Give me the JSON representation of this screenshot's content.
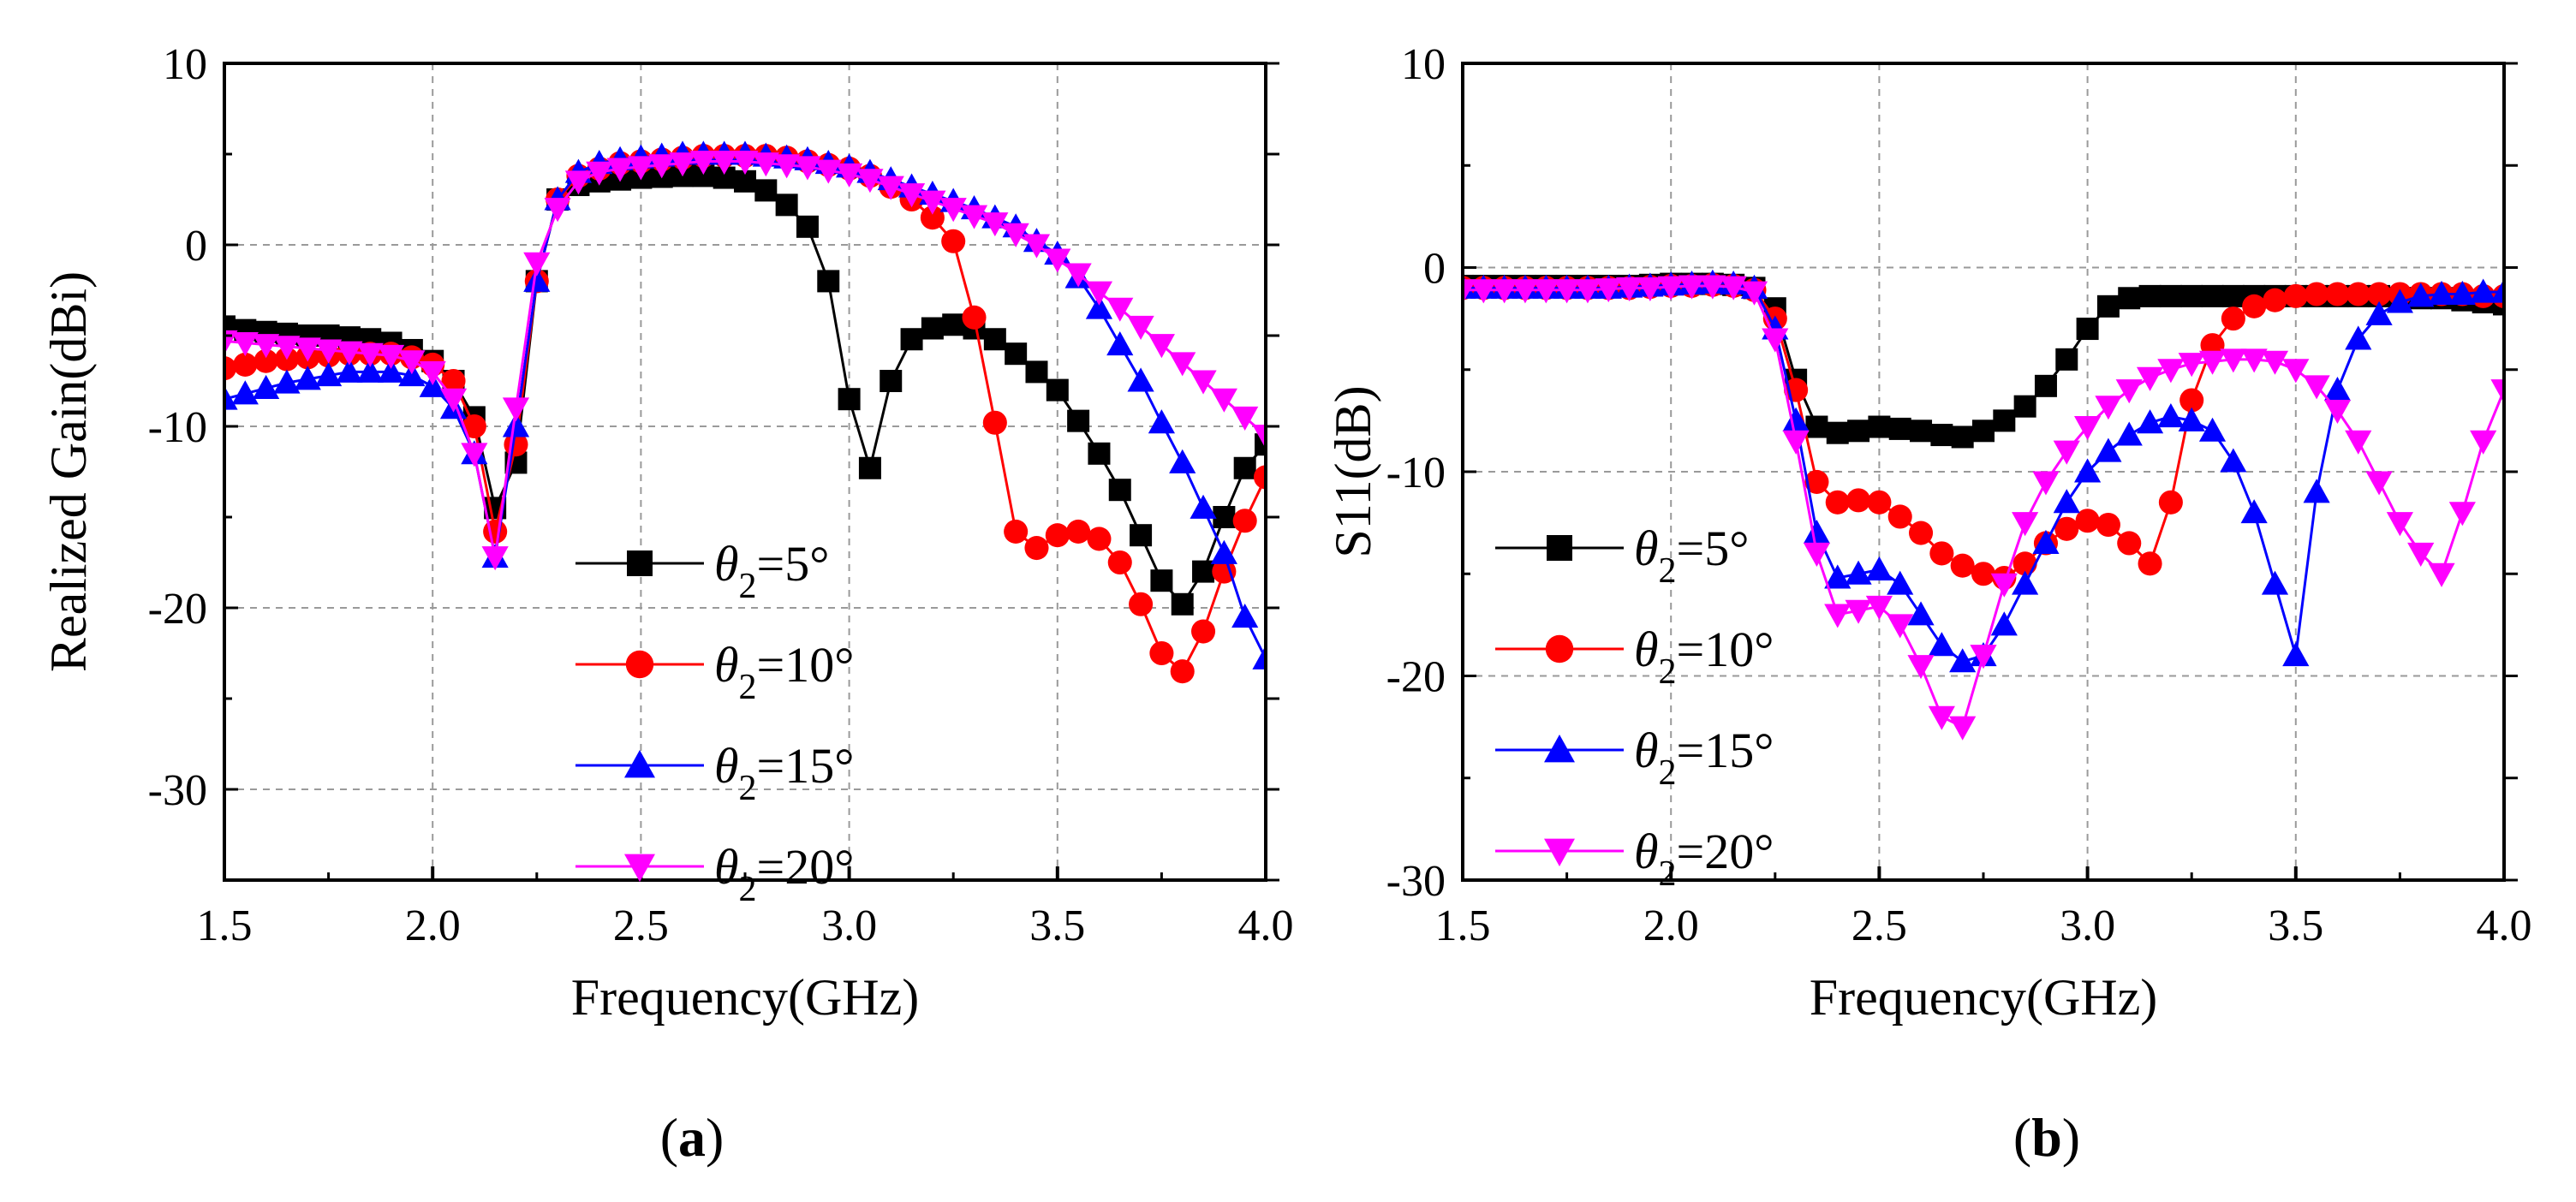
{
  "chart_data": [
    {
      "type": "line",
      "panel": "a",
      "panel_label": {
        "open": "(",
        "letter": "a",
        "close": ")"
      },
      "title": "",
      "xlabel": "Frequency(GHz)",
      "ylabel": "Realized Gain(dBi)",
      "xlim": [
        1.5,
        4.0
      ],
      "ylim": [
        -35,
        10
      ],
      "xticks": [
        1.5,
        2.0,
        2.5,
        3.0,
        3.5,
        4.0
      ],
      "xtick_labels": [
        "1.5",
        "2.0",
        "2.5",
        "3.0",
        "3.5",
        "4.0"
      ],
      "yticks": [
        -30,
        -20,
        -10,
        0,
        10
      ],
      "ytick_labels": [
        "-30",
        "-20",
        "-10",
        "0",
        "10"
      ],
      "grid": true,
      "legend_position": "lower-center",
      "series": [
        {
          "name": "θ2=5°",
          "legend": {
            "theta": "θ",
            "sub": "2",
            "value": "=5°"
          },
          "color": "#000000",
          "marker": "square",
          "x": [
            1.5,
            1.55,
            1.6,
            1.65,
            1.7,
            1.75,
            1.8,
            1.85,
            1.9,
            1.95,
            2.0,
            2.05,
            2.1,
            2.15,
            2.2,
            2.25,
            2.3,
            2.35,
            2.4,
            2.45,
            2.5,
            2.55,
            2.6,
            2.65,
            2.7,
            2.75,
            2.8,
            2.85,
            2.9,
            2.95,
            3.0,
            3.05,
            3.1,
            3.15,
            3.2,
            3.25,
            3.3,
            3.35,
            3.4,
            3.45,
            3.5,
            3.55,
            3.6,
            3.65,
            3.7,
            3.75,
            3.8,
            3.85,
            3.9,
            3.95,
            4.0
          ],
          "values": [
            -4.5,
            -4.7,
            -4.8,
            -4.9,
            -5.0,
            -5.0,
            -5.1,
            -5.2,
            -5.4,
            -5.8,
            -6.4,
            -7.5,
            -9.5,
            -14.5,
            -12.0,
            -2.0,
            2.5,
            3.3,
            3.5,
            3.6,
            3.7,
            3.75,
            3.8,
            3.8,
            3.7,
            3.5,
            3.0,
            2.2,
            1.0,
            -2.0,
            -8.5,
            -12.3,
            -7.5,
            -5.2,
            -4.6,
            -4.4,
            -4.6,
            -5.2,
            -6.0,
            -7.0,
            -8.0,
            -9.7,
            -11.5,
            -13.5,
            -16.0,
            -18.5,
            -19.8,
            -18.0,
            -15.0,
            -12.3,
            -11.0
          ]
        },
        {
          "name": "θ2=10°",
          "legend": {
            "theta": "θ",
            "sub": "2",
            "value": "=10°"
          },
          "color": "#ff0000",
          "marker": "circle",
          "x": [
            1.5,
            1.55,
            1.6,
            1.65,
            1.7,
            1.75,
            1.8,
            1.85,
            1.9,
            1.95,
            2.0,
            2.05,
            2.1,
            2.15,
            2.2,
            2.25,
            2.3,
            2.35,
            2.4,
            2.45,
            2.5,
            2.55,
            2.6,
            2.65,
            2.7,
            2.75,
            2.8,
            2.85,
            2.9,
            2.95,
            3.0,
            3.05,
            3.1,
            3.15,
            3.2,
            3.25,
            3.3,
            3.35,
            3.4,
            3.45,
            3.5,
            3.55,
            3.6,
            3.65,
            3.7,
            3.75,
            3.8,
            3.85,
            3.9,
            3.95,
            4.0
          ],
          "values": [
            -6.8,
            -6.6,
            -6.4,
            -6.3,
            -6.2,
            -6.1,
            -6.0,
            -6.0,
            -6.0,
            -6.2,
            -6.6,
            -7.5,
            -10.0,
            -15.8,
            -11.0,
            -2.0,
            2.5,
            3.8,
            4.2,
            4.5,
            4.6,
            4.7,
            4.8,
            4.9,
            4.9,
            4.9,
            4.9,
            4.8,
            4.6,
            4.4,
            4.2,
            3.8,
            3.2,
            2.5,
            1.5,
            0.2,
            -4.0,
            -9.8,
            -15.8,
            -16.7,
            -16.0,
            -15.8,
            -16.2,
            -17.5,
            -19.8,
            -22.5,
            -23.5,
            -21.3,
            -18.0,
            -15.2,
            -12.8
          ]
        },
        {
          "name": "θ2=15°",
          "legend": {
            "theta": "θ",
            "sub": "2",
            "value": "=15°"
          },
          "color": "#0000ff",
          "marker": "triangle-up",
          "x": [
            1.5,
            1.55,
            1.6,
            1.65,
            1.7,
            1.75,
            1.8,
            1.85,
            1.9,
            1.95,
            2.0,
            2.05,
            2.1,
            2.15,
            2.2,
            2.25,
            2.3,
            2.35,
            2.4,
            2.45,
            2.5,
            2.55,
            2.6,
            2.65,
            2.7,
            2.75,
            2.8,
            2.85,
            2.9,
            2.95,
            3.0,
            3.05,
            3.1,
            3.15,
            3.2,
            3.25,
            3.3,
            3.35,
            3.4,
            3.45,
            3.5,
            3.55,
            3.6,
            3.65,
            3.7,
            3.75,
            3.8,
            3.85,
            3.9,
            3.95,
            4.0
          ],
          "values": [
            -8.5,
            -8.2,
            -7.9,
            -7.6,
            -7.4,
            -7.2,
            -7.0,
            -7.0,
            -7.0,
            -7.2,
            -7.8,
            -9.0,
            -11.5,
            -17.2,
            -10.0,
            -2.0,
            2.5,
            4.0,
            4.5,
            4.7,
            4.8,
            4.9,
            5.0,
            5.0,
            5.0,
            5.0,
            4.9,
            4.8,
            4.7,
            4.5,
            4.3,
            4.0,
            3.6,
            3.2,
            2.8,
            2.4,
            2.0,
            1.5,
            1.0,
            0.2,
            -0.5,
            -1.8,
            -3.5,
            -5.5,
            -7.5,
            -9.8,
            -12.0,
            -14.5,
            -17.0,
            -20.5,
            -22.8
          ]
        },
        {
          "name": "θ2=20°",
          "legend": {
            "theta": "θ",
            "sub": "2",
            "value": "=20°"
          },
          "color": "#ff00ff",
          "marker": "triangle-down",
          "x": [
            1.5,
            1.55,
            1.6,
            1.65,
            1.7,
            1.75,
            1.8,
            1.85,
            1.9,
            1.95,
            2.0,
            2.05,
            2.1,
            2.15,
            2.2,
            2.25,
            2.3,
            2.35,
            2.4,
            2.45,
            2.5,
            2.55,
            2.6,
            2.65,
            2.7,
            2.75,
            2.8,
            2.85,
            2.9,
            2.95,
            3.0,
            3.05,
            3.1,
            3.15,
            3.2,
            3.25,
            3.3,
            3.35,
            3.4,
            3.45,
            3.5,
            3.55,
            3.6,
            3.65,
            3.7,
            3.75,
            3.8,
            3.85,
            3.9,
            3.95,
            4.0
          ],
          "values": [
            -5.3,
            -5.4,
            -5.5,
            -5.6,
            -5.7,
            -5.8,
            -5.9,
            -6.0,
            -6.1,
            -6.4,
            -7.0,
            -8.5,
            -11.5,
            -17.2,
            -9.0,
            -1.0,
            2.0,
            3.5,
            4.0,
            4.2,
            4.3,
            4.4,
            4.5,
            4.6,
            4.6,
            4.6,
            4.5,
            4.4,
            4.3,
            4.1,
            3.9,
            3.6,
            3.2,
            2.8,
            2.4,
            2.0,
            1.6,
            1.2,
            0.6,
            0.0,
            -0.8,
            -1.6,
            -2.6,
            -3.5,
            -4.5,
            -5.5,
            -6.5,
            -7.5,
            -8.5,
            -9.5,
            -10.5
          ]
        }
      ]
    },
    {
      "type": "line",
      "panel": "b",
      "panel_label": {
        "open": "(",
        "letter": "b",
        "close": ")"
      },
      "title": "",
      "xlabel": "Frequency(GHz)",
      "ylabel": "S11(dB)",
      "xlim": [
        1.5,
        4.0
      ],
      "ylim": [
        -30,
        10
      ],
      "xticks": [
        1.5,
        2.0,
        2.5,
        3.0,
        3.5,
        4.0
      ],
      "xtick_labels": [
        "1.5",
        "2.0",
        "2.5",
        "3.0",
        "3.5",
        "4.0"
      ],
      "yticks": [
        -30,
        -20,
        -10,
        0,
        10
      ],
      "ytick_labels": [
        "-30",
        "-20",
        "-10",
        "0",
        "10"
      ],
      "grid": true,
      "legend_position": "lower-left",
      "series": [
        {
          "name": "θ2=5°",
          "legend": {
            "theta": "θ",
            "sub": "2",
            "value": "=5°"
          },
          "color": "#000000",
          "marker": "square",
          "x": [
            1.5,
            1.55,
            1.6,
            1.65,
            1.7,
            1.75,
            1.8,
            1.85,
            1.9,
            1.95,
            2.0,
            2.05,
            2.1,
            2.15,
            2.2,
            2.25,
            2.3,
            2.35,
            2.4,
            2.45,
            2.5,
            2.55,
            2.6,
            2.65,
            2.7,
            2.75,
            2.8,
            2.85,
            2.9,
            2.95,
            3.0,
            3.05,
            3.1,
            3.15,
            3.2,
            3.25,
            3.3,
            3.35,
            3.4,
            3.45,
            3.5,
            3.55,
            3.6,
            3.65,
            3.7,
            3.75,
            3.8,
            3.85,
            3.9,
            3.95,
            4.0
          ],
          "values": [
            -0.9,
            -0.9,
            -0.9,
            -0.9,
            -0.9,
            -0.9,
            -0.9,
            -0.9,
            -0.9,
            -0.85,
            -0.8,
            -0.8,
            -0.8,
            -0.85,
            -1.0,
            -2.0,
            -5.5,
            -7.8,
            -8.1,
            -8.0,
            -7.8,
            -7.9,
            -8.0,
            -8.2,
            -8.3,
            -8.0,
            -7.5,
            -6.8,
            -5.8,
            -4.5,
            -3.0,
            -1.9,
            -1.5,
            -1.4,
            -1.4,
            -1.4,
            -1.4,
            -1.4,
            -1.4,
            -1.4,
            -1.4,
            -1.4,
            -1.4,
            -1.4,
            -1.4,
            -1.5,
            -1.5,
            -1.5,
            -1.6,
            -1.7,
            -1.8
          ]
        },
        {
          "name": "θ2=10°",
          "legend": {
            "theta": "θ",
            "sub": "2",
            "value": "=10°"
          },
          "color": "#ff0000",
          "marker": "circle",
          "x": [
            1.5,
            1.55,
            1.6,
            1.65,
            1.7,
            1.75,
            1.8,
            1.85,
            1.9,
            1.95,
            2.0,
            2.05,
            2.1,
            2.15,
            2.2,
            2.25,
            2.3,
            2.35,
            2.4,
            2.45,
            2.5,
            2.55,
            2.6,
            2.65,
            2.7,
            2.75,
            2.8,
            2.85,
            2.9,
            2.95,
            3.0,
            3.05,
            3.1,
            3.15,
            3.2,
            3.25,
            3.3,
            3.35,
            3.4,
            3.45,
            3.5,
            3.55,
            3.6,
            3.65,
            3.7,
            3.75,
            3.8,
            3.85,
            3.9,
            3.95,
            4.0
          ],
          "values": [
            -1.0,
            -1.0,
            -1.0,
            -1.0,
            -1.0,
            -1.0,
            -1.0,
            -1.0,
            -1.0,
            -0.95,
            -0.9,
            -0.9,
            -0.85,
            -0.9,
            -1.1,
            -2.5,
            -6.0,
            -10.5,
            -11.5,
            -11.4,
            -11.5,
            -12.2,
            -13.0,
            -14.0,
            -14.6,
            -15.0,
            -15.2,
            -14.5,
            -13.5,
            -12.8,
            -12.4,
            -12.6,
            -13.5,
            -14.5,
            -11.5,
            -6.5,
            -3.8,
            -2.5,
            -1.9,
            -1.6,
            -1.4,
            -1.3,
            -1.3,
            -1.3,
            -1.3,
            -1.3,
            -1.3,
            -1.3,
            -1.3,
            -1.4,
            -1.4
          ]
        },
        {
          "name": "θ2=15°",
          "legend": {
            "theta": "θ",
            "sub": "2",
            "value": "=15°"
          },
          "color": "#0000ff",
          "marker": "triangle-up",
          "x": [
            1.5,
            1.55,
            1.6,
            1.65,
            1.7,
            1.75,
            1.8,
            1.85,
            1.9,
            1.95,
            2.0,
            2.05,
            2.1,
            2.15,
            2.2,
            2.25,
            2.3,
            2.35,
            2.4,
            2.45,
            2.5,
            2.55,
            2.6,
            2.65,
            2.7,
            2.75,
            2.8,
            2.85,
            2.9,
            2.95,
            3.0,
            3.05,
            3.1,
            3.15,
            3.2,
            3.25,
            3.3,
            3.35,
            3.4,
            3.45,
            3.5,
            3.55,
            3.6,
            3.65,
            3.7,
            3.75,
            3.8,
            3.85,
            3.9,
            3.95,
            4.0
          ],
          "values": [
            -1.0,
            -1.0,
            -1.0,
            -1.0,
            -1.0,
            -1.0,
            -1.0,
            -1.0,
            -0.95,
            -0.9,
            -0.85,
            -0.8,
            -0.75,
            -0.8,
            -1.0,
            -3.0,
            -7.5,
            -13.0,
            -15.2,
            -15.0,
            -14.8,
            -15.5,
            -17.0,
            -18.5,
            -19.3,
            -19.0,
            -17.5,
            -15.5,
            -13.5,
            -11.5,
            -10.0,
            -9.0,
            -8.2,
            -7.6,
            -7.3,
            -7.5,
            -8.0,
            -9.5,
            -12.0,
            -15.5,
            -19.0,
            -11.0,
            -6.0,
            -3.5,
            -2.3,
            -1.7,
            -1.4,
            -1.3,
            -1.3,
            -1.2,
            -1.2
          ]
        },
        {
          "name": "θ2=20°",
          "legend": {
            "theta": "θ",
            "sub": "2",
            "value": "=20°"
          },
          "color": "#ff00ff",
          "marker": "triangle-down",
          "x": [
            1.5,
            1.55,
            1.6,
            1.65,
            1.7,
            1.75,
            1.8,
            1.85,
            1.9,
            1.95,
            2.0,
            2.05,
            2.1,
            2.15,
            2.2,
            2.25,
            2.3,
            2.35,
            2.4,
            2.45,
            2.5,
            2.55,
            2.6,
            2.65,
            2.7,
            2.75,
            2.8,
            2.85,
            2.9,
            2.95,
            3.0,
            3.05,
            3.1,
            3.15,
            3.2,
            3.25,
            3.3,
            3.35,
            3.4,
            3.45,
            3.5,
            3.55,
            3.6,
            3.65,
            3.7,
            3.75,
            3.8,
            3.85,
            3.9,
            3.95,
            4.0
          ],
          "values": [
            -1.1,
            -1.1,
            -1.1,
            -1.1,
            -1.1,
            -1.1,
            -1.1,
            -1.05,
            -1.0,
            -1.0,
            -0.95,
            -0.9,
            -0.9,
            -0.95,
            -1.2,
            -3.5,
            -8.5,
            -14.0,
            -17.0,
            -16.8,
            -16.6,
            -17.5,
            -19.5,
            -22.0,
            -22.5,
            -19.0,
            -15.5,
            -12.5,
            -10.5,
            -9.0,
            -7.8,
            -6.8,
            -6.0,
            -5.4,
            -5.0,
            -4.7,
            -4.6,
            -4.5,
            -4.5,
            -4.6,
            -5.0,
            -5.8,
            -7.0,
            -8.5,
            -10.5,
            -12.5,
            -14.0,
            -15.0,
            -12.0,
            -8.5,
            -6.0
          ]
        }
      ]
    }
  ]
}
